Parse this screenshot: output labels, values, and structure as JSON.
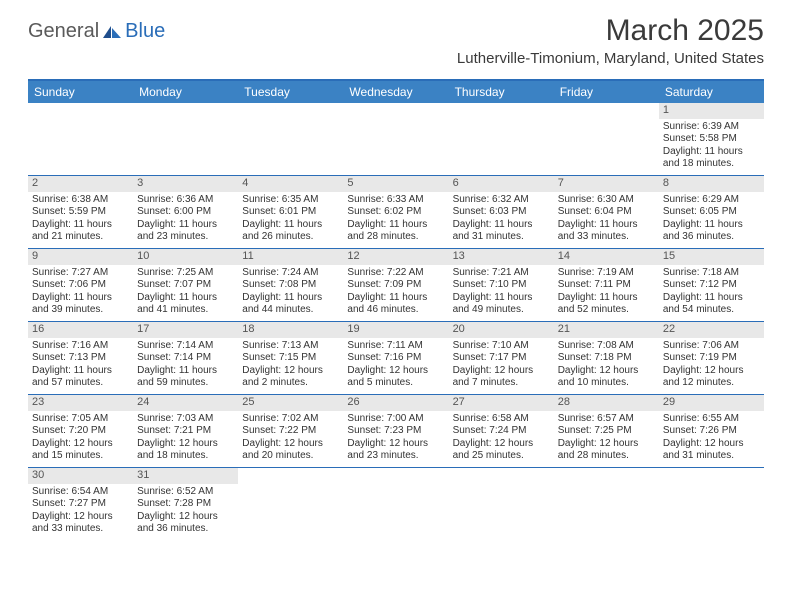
{
  "logo": {
    "general": "General",
    "blue": "Blue"
  },
  "title": "March 2025",
  "location": "Lutherville-Timonium, Maryland, United States",
  "day_headers": [
    "Sunday",
    "Monday",
    "Tuesday",
    "Wednesday",
    "Thursday",
    "Friday",
    "Saturday"
  ],
  "colors": {
    "header_bg": "#3b82c4",
    "header_text": "#ffffff",
    "border": "#2a6db8",
    "daynum_bg": "#e8e8e8",
    "text": "#333333"
  },
  "weeks": [
    [
      null,
      null,
      null,
      null,
      null,
      null,
      {
        "n": "1",
        "sr": "Sunrise: 6:39 AM",
        "ss": "Sunset: 5:58 PM",
        "d1": "Daylight: 11 hours",
        "d2": "and 18 minutes."
      }
    ],
    [
      {
        "n": "2",
        "sr": "Sunrise: 6:38 AM",
        "ss": "Sunset: 5:59 PM",
        "d1": "Daylight: 11 hours",
        "d2": "and 21 minutes."
      },
      {
        "n": "3",
        "sr": "Sunrise: 6:36 AM",
        "ss": "Sunset: 6:00 PM",
        "d1": "Daylight: 11 hours",
        "d2": "and 23 minutes."
      },
      {
        "n": "4",
        "sr": "Sunrise: 6:35 AM",
        "ss": "Sunset: 6:01 PM",
        "d1": "Daylight: 11 hours",
        "d2": "and 26 minutes."
      },
      {
        "n": "5",
        "sr": "Sunrise: 6:33 AM",
        "ss": "Sunset: 6:02 PM",
        "d1": "Daylight: 11 hours",
        "d2": "and 28 minutes."
      },
      {
        "n": "6",
        "sr": "Sunrise: 6:32 AM",
        "ss": "Sunset: 6:03 PM",
        "d1": "Daylight: 11 hours",
        "d2": "and 31 minutes."
      },
      {
        "n": "7",
        "sr": "Sunrise: 6:30 AM",
        "ss": "Sunset: 6:04 PM",
        "d1": "Daylight: 11 hours",
        "d2": "and 33 minutes."
      },
      {
        "n": "8",
        "sr": "Sunrise: 6:29 AM",
        "ss": "Sunset: 6:05 PM",
        "d1": "Daylight: 11 hours",
        "d2": "and 36 minutes."
      }
    ],
    [
      {
        "n": "9",
        "sr": "Sunrise: 7:27 AM",
        "ss": "Sunset: 7:06 PM",
        "d1": "Daylight: 11 hours",
        "d2": "and 39 minutes."
      },
      {
        "n": "10",
        "sr": "Sunrise: 7:25 AM",
        "ss": "Sunset: 7:07 PM",
        "d1": "Daylight: 11 hours",
        "d2": "and 41 minutes."
      },
      {
        "n": "11",
        "sr": "Sunrise: 7:24 AM",
        "ss": "Sunset: 7:08 PM",
        "d1": "Daylight: 11 hours",
        "d2": "and 44 minutes."
      },
      {
        "n": "12",
        "sr": "Sunrise: 7:22 AM",
        "ss": "Sunset: 7:09 PM",
        "d1": "Daylight: 11 hours",
        "d2": "and 46 minutes."
      },
      {
        "n": "13",
        "sr": "Sunrise: 7:21 AM",
        "ss": "Sunset: 7:10 PM",
        "d1": "Daylight: 11 hours",
        "d2": "and 49 minutes."
      },
      {
        "n": "14",
        "sr": "Sunrise: 7:19 AM",
        "ss": "Sunset: 7:11 PM",
        "d1": "Daylight: 11 hours",
        "d2": "and 52 minutes."
      },
      {
        "n": "15",
        "sr": "Sunrise: 7:18 AM",
        "ss": "Sunset: 7:12 PM",
        "d1": "Daylight: 11 hours",
        "d2": "and 54 minutes."
      }
    ],
    [
      {
        "n": "16",
        "sr": "Sunrise: 7:16 AM",
        "ss": "Sunset: 7:13 PM",
        "d1": "Daylight: 11 hours",
        "d2": "and 57 minutes."
      },
      {
        "n": "17",
        "sr": "Sunrise: 7:14 AM",
        "ss": "Sunset: 7:14 PM",
        "d1": "Daylight: 11 hours",
        "d2": "and 59 minutes."
      },
      {
        "n": "18",
        "sr": "Sunrise: 7:13 AM",
        "ss": "Sunset: 7:15 PM",
        "d1": "Daylight: 12 hours",
        "d2": "and 2 minutes."
      },
      {
        "n": "19",
        "sr": "Sunrise: 7:11 AM",
        "ss": "Sunset: 7:16 PM",
        "d1": "Daylight: 12 hours",
        "d2": "and 5 minutes."
      },
      {
        "n": "20",
        "sr": "Sunrise: 7:10 AM",
        "ss": "Sunset: 7:17 PM",
        "d1": "Daylight: 12 hours",
        "d2": "and 7 minutes."
      },
      {
        "n": "21",
        "sr": "Sunrise: 7:08 AM",
        "ss": "Sunset: 7:18 PM",
        "d1": "Daylight: 12 hours",
        "d2": "and 10 minutes."
      },
      {
        "n": "22",
        "sr": "Sunrise: 7:06 AM",
        "ss": "Sunset: 7:19 PM",
        "d1": "Daylight: 12 hours",
        "d2": "and 12 minutes."
      }
    ],
    [
      {
        "n": "23",
        "sr": "Sunrise: 7:05 AM",
        "ss": "Sunset: 7:20 PM",
        "d1": "Daylight: 12 hours",
        "d2": "and 15 minutes."
      },
      {
        "n": "24",
        "sr": "Sunrise: 7:03 AM",
        "ss": "Sunset: 7:21 PM",
        "d1": "Daylight: 12 hours",
        "d2": "and 18 minutes."
      },
      {
        "n": "25",
        "sr": "Sunrise: 7:02 AM",
        "ss": "Sunset: 7:22 PM",
        "d1": "Daylight: 12 hours",
        "d2": "and 20 minutes."
      },
      {
        "n": "26",
        "sr": "Sunrise: 7:00 AM",
        "ss": "Sunset: 7:23 PM",
        "d1": "Daylight: 12 hours",
        "d2": "and 23 minutes."
      },
      {
        "n": "27",
        "sr": "Sunrise: 6:58 AM",
        "ss": "Sunset: 7:24 PM",
        "d1": "Daylight: 12 hours",
        "d2": "and 25 minutes."
      },
      {
        "n": "28",
        "sr": "Sunrise: 6:57 AM",
        "ss": "Sunset: 7:25 PM",
        "d1": "Daylight: 12 hours",
        "d2": "and 28 minutes."
      },
      {
        "n": "29",
        "sr": "Sunrise: 6:55 AM",
        "ss": "Sunset: 7:26 PM",
        "d1": "Daylight: 12 hours",
        "d2": "and 31 minutes."
      }
    ],
    [
      {
        "n": "30",
        "sr": "Sunrise: 6:54 AM",
        "ss": "Sunset: 7:27 PM",
        "d1": "Daylight: 12 hours",
        "d2": "and 33 minutes."
      },
      {
        "n": "31",
        "sr": "Sunrise: 6:52 AM",
        "ss": "Sunset: 7:28 PM",
        "d1": "Daylight: 12 hours",
        "d2": "and 36 minutes."
      },
      null,
      null,
      null,
      null,
      null
    ]
  ]
}
